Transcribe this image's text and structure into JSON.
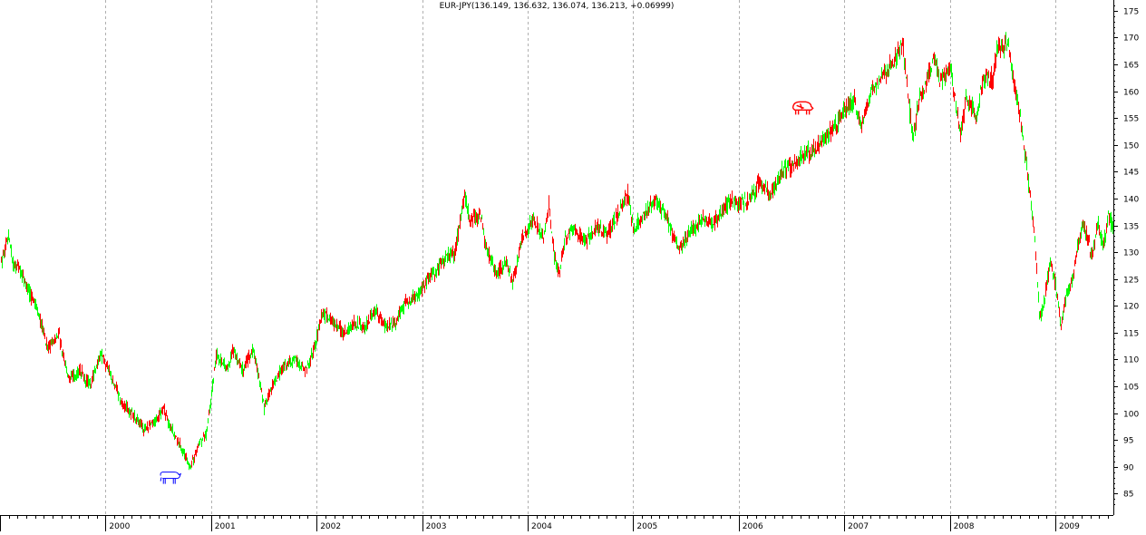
{
  "colors": {
    "up": "#00ff00",
    "down": "#ff0000",
    "gridline": "#b0b0b0",
    "axis": "#000000",
    "bull_icon": "#0000ff",
    "bear_icon": "#ff0000"
  },
  "chart_data": {
    "type": "candlestick",
    "title": "EUR-JPY(136.149, 136.632, 136.074, 136.213, +0.06999)",
    "xlabel": "",
    "ylabel": "",
    "ylim": [
      81,
      177
    ],
    "xlim": [
      1999.0,
      2009.55
    ],
    "y_ticks": [
      85,
      90,
      95,
      100,
      105,
      110,
      115,
      120,
      125,
      130,
      135,
      140,
      145,
      150,
      155,
      160,
      165,
      170,
      175
    ],
    "x_tick_labels": [
      "2000",
      "2001",
      "2002",
      "2003",
      "2004",
      "2005",
      "2006",
      "2007",
      "2008",
      "2009"
    ],
    "x_tick_years": [
      2000,
      2001,
      2002,
      2003,
      2004,
      2005,
      2006,
      2007,
      2008,
      2009
    ],
    "grid": "vertical dashed at year starts",
    "last_ohlc": {
      "open": 136.149,
      "high": 136.632,
      "low": 136.074,
      "close": 136.213,
      "change": 0.06999
    },
    "price_path": [
      [
        1999.0,
        127
      ],
      [
        1999.08,
        133
      ],
      [
        1999.12,
        128
      ],
      [
        1999.2,
        126
      ],
      [
        1999.35,
        119
      ],
      [
        1999.45,
        112
      ],
      [
        1999.55,
        115
      ],
      [
        1999.65,
        106
      ],
      [
        1999.75,
        108
      ],
      [
        1999.85,
        105
      ],
      [
        1999.95,
        111
      ],
      [
        2000.05,
        107
      ],
      [
        2000.15,
        102
      ],
      [
        2000.25,
        100
      ],
      [
        2000.35,
        97
      ],
      [
        2000.45,
        98
      ],
      [
        2000.55,
        101
      ],
      [
        2000.6,
        98
      ],
      [
        2000.7,
        94
      ],
      [
        2000.8,
        90
      ],
      [
        2000.9,
        95
      ],
      [
        2000.95,
        96
      ],
      [
        2001.05,
        111
      ],
      [
        2001.15,
        108
      ],
      [
        2001.2,
        112
      ],
      [
        2001.3,
        108
      ],
      [
        2001.4,
        112
      ],
      [
        2001.5,
        101
      ],
      [
        2001.6,
        106
      ],
      [
        2001.7,
        109
      ],
      [
        2001.8,
        110
      ],
      [
        2001.9,
        108
      ],
      [
        2002.0,
        114
      ],
      [
        2002.05,
        119
      ],
      [
        2002.15,
        117
      ],
      [
        2002.25,
        115
      ],
      [
        2002.35,
        117
      ],
      [
        2002.45,
        116
      ],
      [
        2002.55,
        119
      ],
      [
        2002.65,
        116
      ],
      [
        2002.75,
        117
      ],
      [
        2002.85,
        121
      ],
      [
        2002.95,
        122
      ],
      [
        2003.05,
        125
      ],
      [
        2003.15,
        127
      ],
      [
        2003.25,
        130
      ],
      [
        2003.3,
        129
      ],
      [
        2003.4,
        141
      ],
      [
        2003.45,
        136
      ],
      [
        2003.55,
        137
      ],
      [
        2003.6,
        131
      ],
      [
        2003.7,
        126
      ],
      [
        2003.8,
        128
      ],
      [
        2003.85,
        124
      ],
      [
        2003.95,
        133
      ],
      [
        2004.05,
        136
      ],
      [
        2004.15,
        133
      ],
      [
        2004.2,
        139
      ],
      [
        2004.25,
        129
      ],
      [
        2004.3,
        126
      ],
      [
        2004.35,
        133
      ],
      [
        2004.45,
        134
      ],
      [
        2004.55,
        132
      ],
      [
        2004.65,
        135
      ],
      [
        2004.75,
        133
      ],
      [
        2004.85,
        137
      ],
      [
        2004.95,
        141
      ],
      [
        2005.0,
        134
      ],
      [
        2005.1,
        137
      ],
      [
        2005.2,
        140
      ],
      [
        2005.3,
        137
      ],
      [
        2005.4,
        132
      ],
      [
        2005.45,
        131
      ],
      [
        2005.55,
        134
      ],
      [
        2005.65,
        136
      ],
      [
        2005.75,
        135
      ],
      [
        2005.85,
        138
      ],
      [
        2005.95,
        140
      ],
      [
        2006.0,
        139
      ],
      [
        2006.1,
        140
      ],
      [
        2006.2,
        143
      ],
      [
        2006.3,
        141
      ],
      [
        2006.4,
        145
      ],
      [
        2006.5,
        146
      ],
      [
        2006.6,
        148
      ],
      [
        2006.7,
        149
      ],
      [
        2006.8,
        151
      ],
      [
        2006.9,
        153
      ],
      [
        2007.0,
        157
      ],
      [
        2007.1,
        158
      ],
      [
        2007.15,
        153
      ],
      [
        2007.25,
        160
      ],
      [
        2007.35,
        163
      ],
      [
        2007.45,
        165
      ],
      [
        2007.55,
        169
      ],
      [
        2007.6,
        159
      ],
      [
        2007.65,
        151
      ],
      [
        2007.7,
        158
      ],
      [
        2007.8,
        163
      ],
      [
        2007.85,
        167
      ],
      [
        2007.9,
        162
      ],
      [
        2007.95,
        163
      ],
      [
        2008.0,
        165
      ],
      [
        2008.05,
        158
      ],
      [
        2008.1,
        152
      ],
      [
        2008.15,
        158
      ],
      [
        2008.2,
        157
      ],
      [
        2008.25,
        155
      ],
      [
        2008.3,
        161
      ],
      [
        2008.35,
        163
      ],
      [
        2008.4,
        162
      ],
      [
        2008.45,
        168
      ],
      [
        2008.55,
        169
      ],
      [
        2008.6,
        162
      ],
      [
        2008.65,
        157
      ],
      [
        2008.7,
        150
      ],
      [
        2008.75,
        142
      ],
      [
        2008.8,
        133
      ],
      [
        2008.85,
        117
      ],
      [
        2008.9,
        122
      ],
      [
        2008.95,
        128
      ],
      [
        2009.0,
        124
      ],
      [
        2009.05,
        116
      ],
      [
        2009.1,
        122
      ],
      [
        2009.15,
        124
      ],
      [
        2009.2,
        130
      ],
      [
        2009.25,
        135
      ],
      [
        2009.3,
        133
      ],
      [
        2009.35,
        129
      ],
      [
        2009.4,
        136
      ],
      [
        2009.45,
        131
      ],
      [
        2009.5,
        137
      ],
      [
        2009.55,
        134
      ]
    ],
    "annotations": [
      {
        "name": "bull",
        "x": 2000.6,
        "y": 88
      },
      {
        "name": "bear",
        "x": 2006.6,
        "y": 157
      }
    ]
  }
}
